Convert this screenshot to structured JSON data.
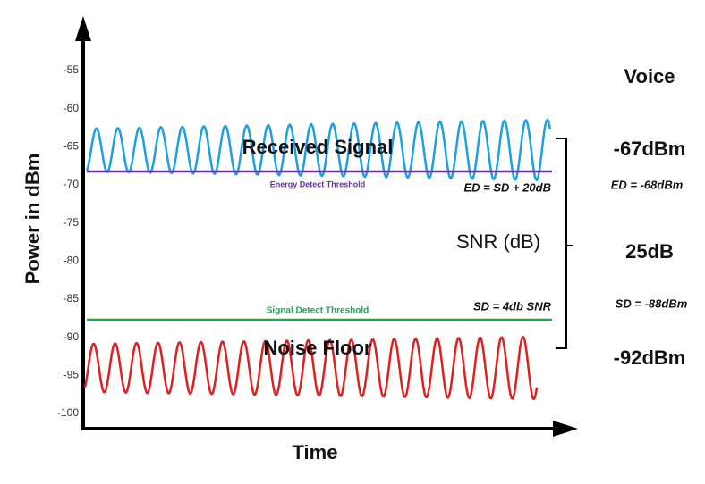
{
  "y_axis": {
    "label": "Power in dBm",
    "ticks": [
      -55,
      -60,
      -65,
      -70,
      -75,
      -80,
      -85,
      -90,
      -95,
      -100
    ]
  },
  "x_axis": {
    "label": "Time"
  },
  "plot": {
    "received_signal": "Received Signal",
    "energy_threshold": "Energy Detect Threshold",
    "ed_formula": "ED = SD + 20dB",
    "snr": "SNR (dB)",
    "sd_formula": "SD = 4db SNR",
    "signal_threshold": "Signal Detect Threshold",
    "noise_floor": "Noise Floor"
  },
  "side": {
    "title": "Voice",
    "received": "-67dBm",
    "ed": "ED = -68dBm",
    "snr": "25dB",
    "sd": "SD = -88dBm",
    "noise": "-92dBm"
  }
}
